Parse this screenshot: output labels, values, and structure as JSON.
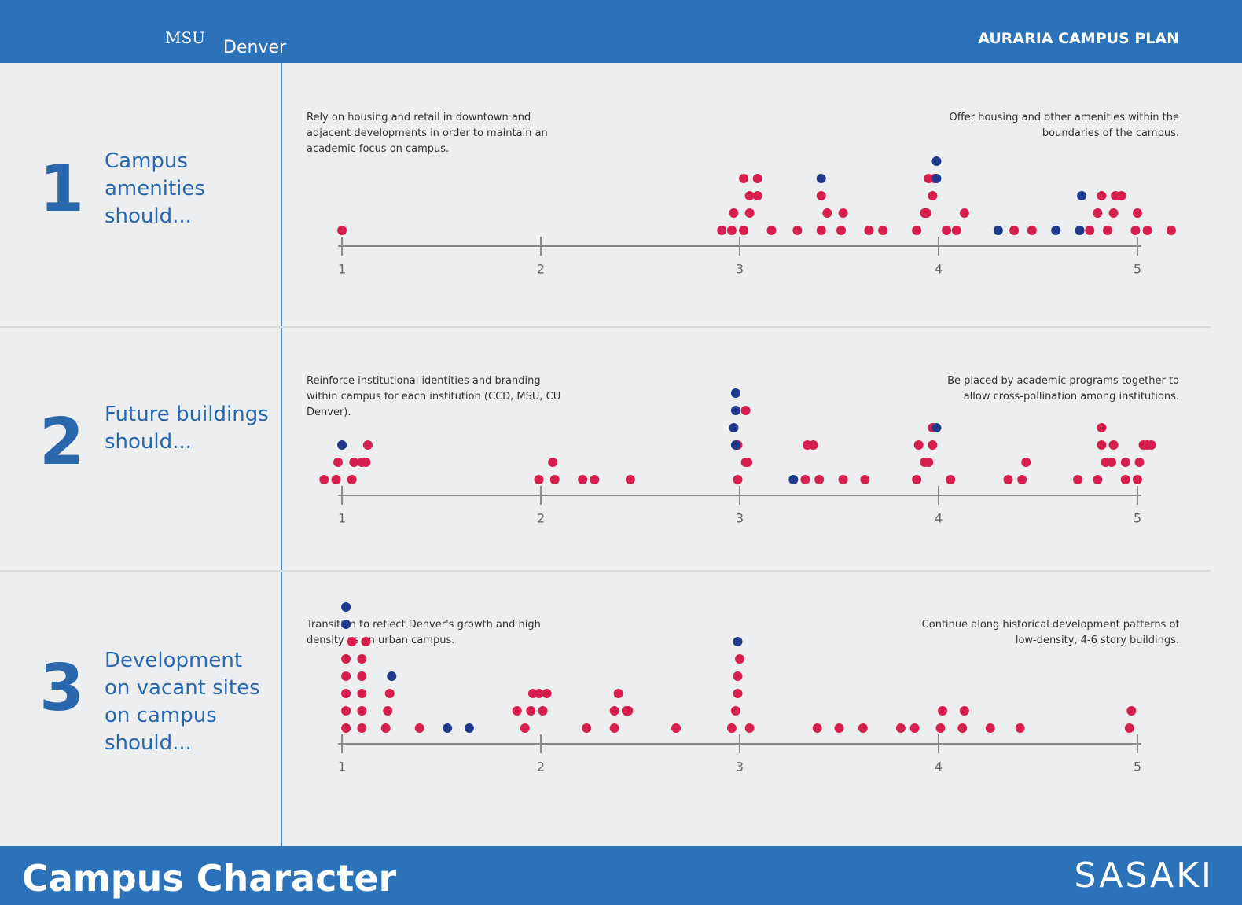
{
  "header": {
    "logo_1": "MSU",
    "logo_2": "Denver",
    "title": "AURARIA CAMPUS PLAN"
  },
  "footer": {
    "title": "Campus Character",
    "brand": "SASAKI"
  },
  "chart_data": [
    {
      "type": "scatter",
      "number": "1",
      "question": "Campus amenities should...",
      "left_label": "Rely on housing and retail in downtown and adjacent developments in order to maintain an academic focus on campus.",
      "right_label": "Offer housing and other amenities within the boundaries of the campus.",
      "xlim": [
        0.98,
        5.02
      ],
      "xticks": [
        1,
        2,
        3,
        4,
        5
      ],
      "series": [
        {
          "color": "#d61f4f",
          "values": [
            1.0,
            2.91,
            2.96,
            3.02,
            3.05,
            2.97,
            3.05,
            3.09,
            3.09,
            3.02,
            3.16,
            3.29,
            3.41,
            3.44,
            3.41,
            3.51,
            3.52,
            3.65,
            3.72,
            3.89,
            3.93,
            3.94,
            3.97,
            3.95,
            4.04,
            3.98,
            4.09,
            4.13,
            4.38,
            4.47,
            4.76,
            4.8,
            4.85,
            4.88,
            4.89,
            4.99,
            5.0,
            5.05,
            4.92,
            4.82,
            5.17
          ]
        },
        {
          "color": "#1f3a8c",
          "values": [
            3.41,
            3.99,
            3.99,
            4.3,
            4.59,
            4.71,
            4.72
          ]
        }
      ]
    },
    {
      "type": "scatter",
      "number": "2",
      "question": "Future buildings should...",
      "left_label": "Reinforce institutional identities and branding within campus for each institution (CCD, MSU, CU Denver).",
      "right_label": "Be placed by academic programs together to allow cross-pollination among institutions.",
      "xlim": [
        0.98,
        5.02
      ],
      "xticks": [
        1,
        2,
        3,
        4,
        5
      ],
      "series": [
        {
          "color": "#d61f4f",
          "values": [
            0.91,
            0.97,
            0.98,
            1.05,
            1.06,
            1.1,
            1.12,
            1.13,
            1.99,
            2.07,
            2.06,
            2.21,
            2.27,
            2.45,
            2.99,
            3.03,
            2.99,
            3.04,
            3.03,
            3.33,
            3.4,
            3.37,
            3.34,
            3.52,
            3.63,
            3.89,
            3.93,
            3.95,
            3.97,
            3.97,
            4.06,
            3.9,
            4.35,
            4.42,
            4.44,
            4.7,
            4.8,
            4.84,
            4.82,
            4.87,
            4.82,
            4.94,
            4.94,
            5.0,
            5.01,
            5.03,
            5.05,
            5.07,
            4.88
          ]
        },
        {
          "color": "#1f3a8c",
          "values": [
            1.0,
            2.98,
            2.97,
            2.98,
            2.98,
            3.27,
            3.99
          ]
        }
      ]
    },
    {
      "type": "scatter",
      "number": "3",
      "question": "Development on vacant sites on campus should...",
      "left_label": "Transition to reflect Denver's growth and high density as an urban campus.",
      "right_label": "Continue along historical development patterns of low-density, 4-6 story buildings.",
      "xlim": [
        0.98,
        5.02
      ],
      "xticks": [
        1,
        2,
        3,
        4,
        5
      ],
      "series": [
        {
          "color": "#d61f4f",
          "values": [
            1.02,
            1.02,
            1.02,
            1.02,
            1.02,
            1.05,
            1.1,
            1.1,
            1.1,
            1.1,
            1.1,
            1.12,
            1.22,
            1.23,
            1.24,
            1.39,
            1.92,
            1.95,
            1.96,
            1.99,
            2.01,
            2.03,
            1.88,
            2.23,
            2.37,
            2.37,
            2.39,
            2.43,
            2.44,
            2.68,
            2.96,
            2.98,
            2.99,
            2.99,
            3.0,
            3.05,
            3.39,
            3.5,
            3.62,
            3.81,
            3.88,
            4.01,
            4.02,
            4.12,
            4.13,
            4.26,
            4.41,
            4.96,
            4.97
          ]
        },
        {
          "color": "#1f3a8c",
          "values": [
            1.02,
            1.02,
            1.25,
            1.53,
            1.64,
            2.99
          ]
        }
      ]
    }
  ]
}
